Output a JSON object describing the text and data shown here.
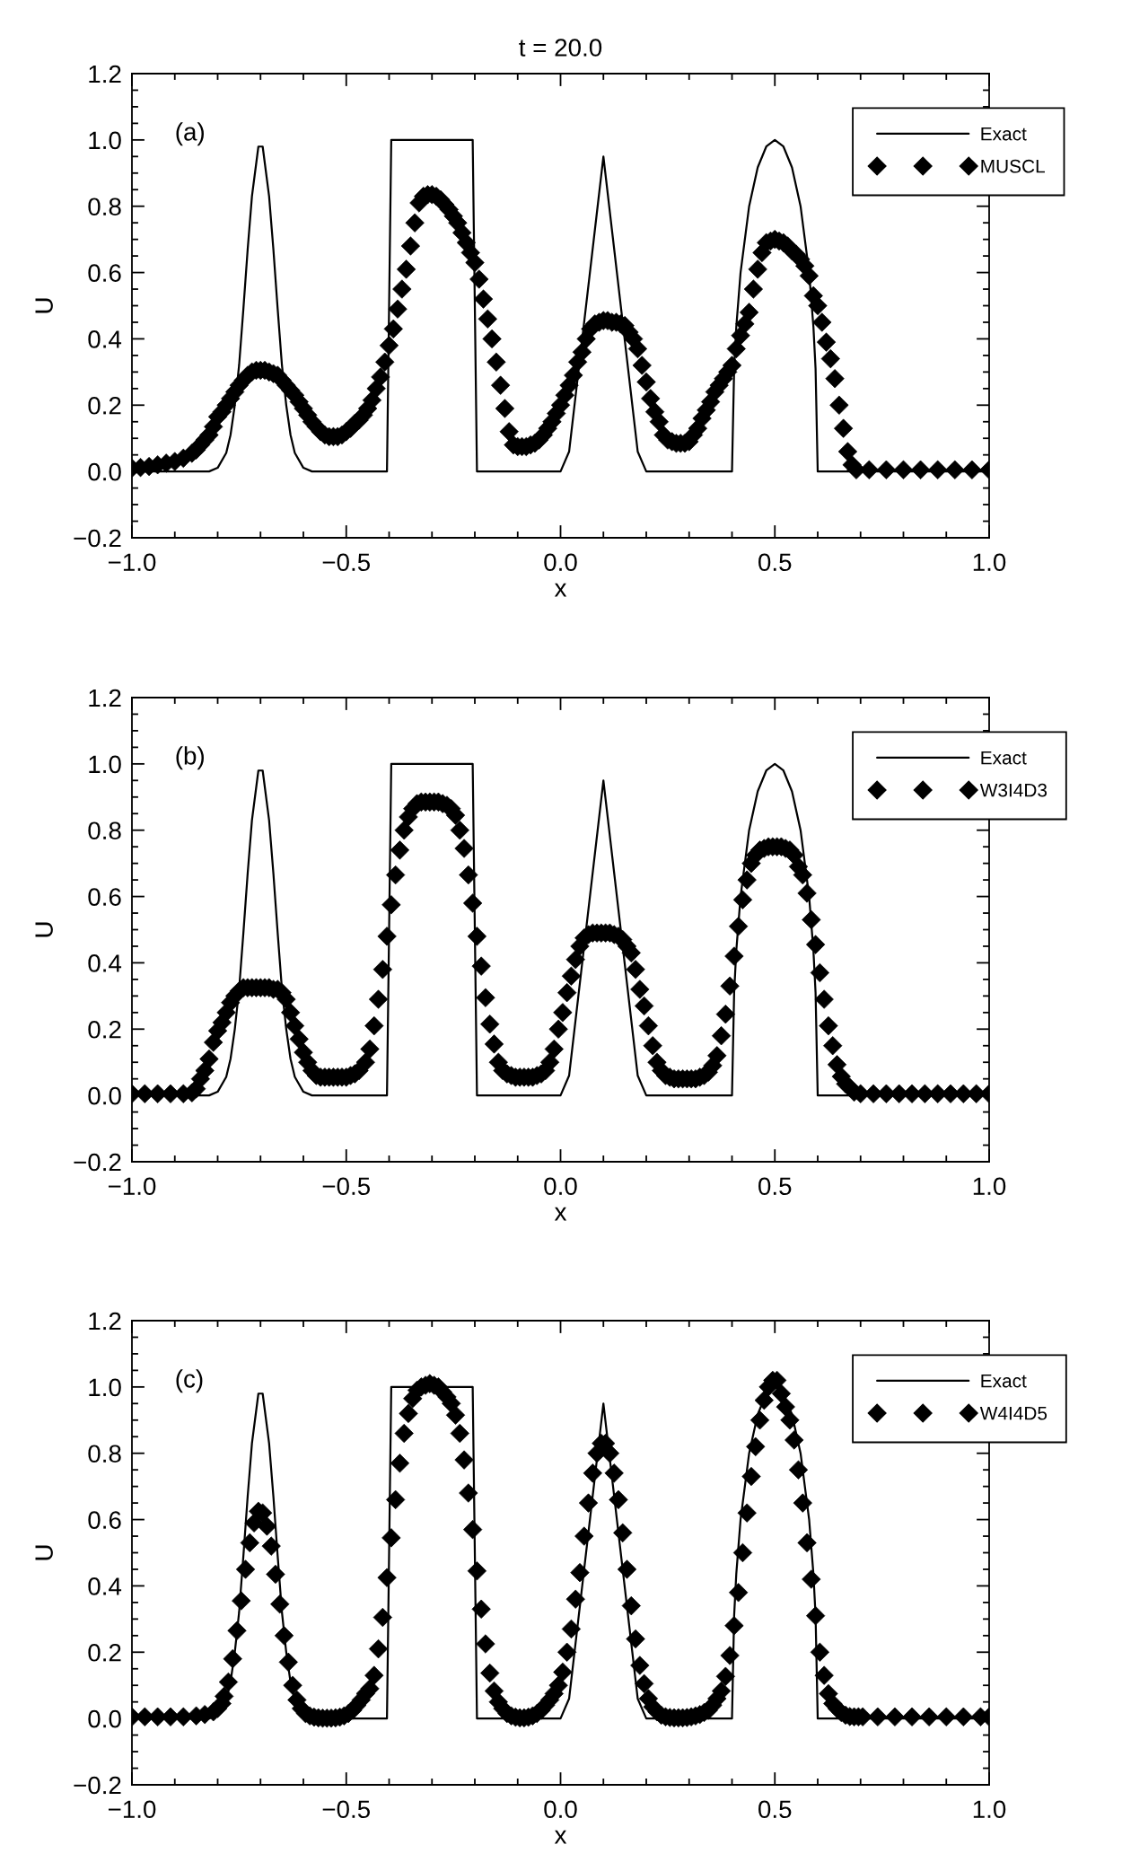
{
  "chart_data": [
    {
      "type": "scatter",
      "title": "t = 20.0",
      "xlabel": "x",
      "ylabel": "U",
      "annotations": [
        "(a)"
      ],
      "legend": "top right",
      "xlim": [
        -1.0,
        1.0
      ],
      "ylim": [
        -0.2,
        1.2
      ],
      "xticks": [
        {
          "value": -1.0,
          "label": "−1.0"
        },
        {
          "value": -0.9,
          "label": null
        },
        {
          "value": -0.8,
          "label": null
        },
        {
          "value": -0.7,
          "label": null
        },
        {
          "value": -0.6,
          "label": null
        },
        {
          "value": -0.5,
          "label": "−0.5"
        },
        {
          "value": -0.4,
          "label": null
        },
        {
          "value": -0.3,
          "label": null
        },
        {
          "value": -0.2,
          "label": null
        },
        {
          "value": -0.1,
          "label": null
        },
        {
          "value": 0.0,
          "label": "0.0"
        },
        {
          "value": 0.1,
          "label": null
        },
        {
          "value": 0.2,
          "label": null
        },
        {
          "value": 0.3,
          "label": null
        },
        {
          "value": 0.4,
          "label": null
        },
        {
          "value": 0.5,
          "label": "0.5"
        },
        {
          "value": 0.6,
          "label": null
        },
        {
          "value": 0.7,
          "label": null
        },
        {
          "value": 0.8,
          "label": null
        },
        {
          "value": 0.9,
          "label": null
        },
        {
          "value": 1.0,
          "label": "1.0"
        }
      ],
      "yticks": [
        {
          "value": -0.2,
          "label": "−0.2"
        },
        {
          "value": -0.15,
          "label": null
        },
        {
          "value": -0.1,
          "label": null
        },
        {
          "value": -0.05,
          "label": null
        },
        {
          "value": 0.0,
          "label": "0.0"
        },
        {
          "value": 0.05,
          "label": null
        },
        {
          "value": 0.1,
          "label": null
        },
        {
          "value": 0.15,
          "label": null
        },
        {
          "value": 0.2,
          "label": "0.2"
        },
        {
          "value": 0.25,
          "label": null
        },
        {
          "value": 0.3,
          "label": null
        },
        {
          "value": 0.35,
          "label": null
        },
        {
          "value": 0.4,
          "label": "0.4"
        },
        {
          "value": 0.45,
          "label": null
        },
        {
          "value": 0.5,
          "label": null
        },
        {
          "value": 0.55,
          "label": null
        },
        {
          "value": 0.6,
          "label": "0.6"
        },
        {
          "value": 0.65,
          "label": null
        },
        {
          "value": 0.7,
          "label": null
        },
        {
          "value": 0.75,
          "label": null
        },
        {
          "value": 0.8,
          "label": "0.8"
        },
        {
          "value": 0.85,
          "label": null
        },
        {
          "value": 0.9,
          "label": null
        },
        {
          "value": 0.95,
          "label": null
        },
        {
          "value": 1.0,
          "label": "1.0"
        },
        {
          "value": 1.05,
          "label": null
        },
        {
          "value": 1.1,
          "label": null
        },
        {
          "value": 1.15,
          "label": null
        },
        {
          "value": 1.2,
          "label": "1.2"
        }
      ],
      "series": [
        {
          "name": "Exact",
          "type": "line",
          "line_style": "solid",
          "marker": "none",
          "color": "#000000",
          "x": [
            -1.0,
            -0.82,
            -0.8,
            -0.78,
            -0.77,
            -0.76,
            -0.75,
            -0.74,
            -0.73,
            -0.72,
            -0.705,
            -0.695,
            -0.68,
            -0.67,
            -0.66,
            -0.65,
            -0.64,
            -0.63,
            -0.62,
            -0.6,
            -0.58,
            -0.405,
            -0.395,
            -0.205,
            -0.195,
            0.0,
            0.02,
            0.1,
            0.18,
            0.2,
            0.4,
            0.405,
            0.41,
            0.42,
            0.44,
            0.46,
            0.48,
            0.5,
            0.52,
            0.54,
            0.56,
            0.58,
            0.59,
            0.595,
            0.6,
            1.0
          ],
          "values": [
            0,
            0,
            0.011,
            0.056,
            0.11,
            0.2,
            0.32,
            0.49,
            0.67,
            0.83,
            0.98,
            0.98,
            0.83,
            0.67,
            0.49,
            0.32,
            0.2,
            0.11,
            0.056,
            0.011,
            0,
            0,
            1.0,
            1.0,
            0,
            0,
            0.06,
            0.95,
            0.06,
            0,
            0,
            0.31,
            0.436,
            0.6,
            0.8,
            0.917,
            0.98,
            1.0,
            0.98,
            0.917,
            0.8,
            0.6,
            0.436,
            0.31,
            0,
            0
          ]
        },
        {
          "name": "MUSCL",
          "marker": "diamond",
          "color": "#000000",
          "x": [
            -1.0,
            -0.98,
            -0.96,
            -0.94,
            -0.92,
            -0.9,
            -0.88,
            -0.86,
            -0.85,
            -0.84,
            -0.83,
            -0.82,
            -0.81,
            -0.8,
            -0.79,
            -0.78,
            -0.77,
            -0.76,
            -0.75,
            -0.74,
            -0.73,
            -0.72,
            -0.71,
            -0.7,
            -0.69,
            -0.68,
            -0.67,
            -0.66,
            -0.65,
            -0.64,
            -0.63,
            -0.62,
            -0.61,
            -0.6,
            -0.59,
            -0.58,
            -0.57,
            -0.56,
            -0.55,
            -0.54,
            -0.53,
            -0.52,
            -0.51,
            -0.5,
            -0.49,
            -0.48,
            -0.47,
            -0.46,
            -0.45,
            -0.44,
            -0.43,
            -0.42,
            -0.41,
            -0.4,
            -0.39,
            -0.38,
            -0.37,
            -0.36,
            -0.35,
            -0.34,
            -0.33,
            -0.32,
            -0.31,
            -0.3,
            -0.29,
            -0.28,
            -0.27,
            -0.26,
            -0.25,
            -0.24,
            -0.23,
            -0.22,
            -0.21,
            -0.2,
            -0.19,
            -0.18,
            -0.17,
            -0.16,
            -0.15,
            -0.14,
            -0.13,
            -0.12,
            -0.11,
            -0.1,
            -0.09,
            -0.08,
            -0.07,
            -0.06,
            -0.05,
            -0.04,
            -0.03,
            -0.02,
            -0.01,
            0.0,
            0.01,
            0.02,
            0.03,
            0.04,
            0.05,
            0.06,
            0.07,
            0.08,
            0.09,
            0.1,
            0.11,
            0.12,
            0.13,
            0.14,
            0.15,
            0.16,
            0.17,
            0.18,
            0.19,
            0.2,
            0.21,
            0.22,
            0.23,
            0.24,
            0.25,
            0.26,
            0.27,
            0.28,
            0.29,
            0.3,
            0.31,
            0.32,
            0.33,
            0.34,
            0.35,
            0.36,
            0.37,
            0.38,
            0.39,
            0.4,
            0.41,
            0.42,
            0.43,
            0.44,
            0.45,
            0.46,
            0.47,
            0.48,
            0.49,
            0.5,
            0.51,
            0.52,
            0.53,
            0.54,
            0.55,
            0.56,
            0.57,
            0.58,
            0.59,
            0.6,
            0.61,
            0.62,
            0.63,
            0.64,
            0.65,
            0.66,
            0.67,
            0.68,
            0.69,
            0.72,
            0.76,
            0.8,
            0.84,
            0.88,
            0.92,
            0.96,
            1.0
          ],
          "values": [
            0.01,
            0.012,
            0.015,
            0.02,
            0.025,
            0.03,
            0.04,
            0.055,
            0.065,
            0.08,
            0.095,
            0.11,
            0.135,
            0.165,
            0.18,
            0.2,
            0.22,
            0.24,
            0.26,
            0.275,
            0.29,
            0.3,
            0.305,
            0.305,
            0.305,
            0.3,
            0.295,
            0.29,
            0.275,
            0.26,
            0.245,
            0.23,
            0.21,
            0.19,
            0.17,
            0.15,
            0.135,
            0.12,
            0.11,
            0.105,
            0.105,
            0.105,
            0.11,
            0.12,
            0.13,
            0.145,
            0.155,
            0.17,
            0.19,
            0.215,
            0.25,
            0.285,
            0.33,
            0.38,
            0.43,
            0.49,
            0.55,
            0.61,
            0.68,
            0.75,
            0.81,
            0.83,
            0.835,
            0.835,
            0.83,
            0.82,
            0.805,
            0.79,
            0.77,
            0.75,
            0.72,
            0.69,
            0.66,
            0.63,
            0.58,
            0.52,
            0.46,
            0.4,
            0.33,
            0.26,
            0.19,
            0.12,
            0.08,
            0.075,
            0.075,
            0.075,
            0.08,
            0.085,
            0.095,
            0.11,
            0.13,
            0.15,
            0.175,
            0.2,
            0.23,
            0.26,
            0.29,
            0.33,
            0.36,
            0.4,
            0.43,
            0.445,
            0.45,
            0.455,
            0.455,
            0.45,
            0.45,
            0.445,
            0.44,
            0.42,
            0.4,
            0.37,
            0.32,
            0.27,
            0.22,
            0.18,
            0.15,
            0.11,
            0.095,
            0.09,
            0.085,
            0.085,
            0.085,
            0.09,
            0.11,
            0.13,
            0.16,
            0.185,
            0.21,
            0.24,
            0.26,
            0.28,
            0.3,
            0.32,
            0.37,
            0.41,
            0.445,
            0.48,
            0.55,
            0.61,
            0.66,
            0.69,
            0.695,
            0.7,
            0.695,
            0.69,
            0.68,
            0.665,
            0.655,
            0.64,
            0.62,
            0.59,
            0.53,
            0.5,
            0.45,
            0.39,
            0.34,
            0.28,
            0.2,
            0.13,
            0.06,
            0.02,
            0.005,
            0.005,
            0.005,
            0.005,
            0.005,
            0.005,
            0.005,
            0.005,
            0.005
          ]
        }
      ]
    },
    {
      "type": "scatter",
      "xlabel": "x",
      "ylabel": "U",
      "annotations": [
        "(b)"
      ],
      "legend": "top right",
      "xlim": [
        -1.0,
        1.0
      ],
      "ylim": [
        -0.2,
        1.2
      ],
      "xticks": [
        {
          "value": -1.0,
          "label": "−1.0"
        },
        {
          "value": -0.9,
          "label": null
        },
        {
          "value": -0.8,
          "label": null
        },
        {
          "value": -0.7,
          "label": null
        },
        {
          "value": -0.6,
          "label": null
        },
        {
          "value": -0.5,
          "label": "−0.5"
        },
        {
          "value": -0.4,
          "label": null
        },
        {
          "value": -0.3,
          "label": null
        },
        {
          "value": -0.2,
          "label": null
        },
        {
          "value": -0.1,
          "label": null
        },
        {
          "value": 0.0,
          "label": "0.0"
        },
        {
          "value": 0.1,
          "label": null
        },
        {
          "value": 0.2,
          "label": null
        },
        {
          "value": 0.3,
          "label": null
        },
        {
          "value": 0.4,
          "label": null
        },
        {
          "value": 0.5,
          "label": "0.5"
        },
        {
          "value": 0.6,
          "label": null
        },
        {
          "value": 0.7,
          "label": null
        },
        {
          "value": 0.8,
          "label": null
        },
        {
          "value": 0.9,
          "label": null
        },
        {
          "value": 1.0,
          "label": "1.0"
        }
      ],
      "yticks": [
        {
          "value": -0.2,
          "label": "−0.2"
        },
        {
          "value": -0.15,
          "label": null
        },
        {
          "value": -0.1,
          "label": null
        },
        {
          "value": -0.05,
          "label": null
        },
        {
          "value": 0.0,
          "label": "0.0"
        },
        {
          "value": 0.05,
          "label": null
        },
        {
          "value": 0.1,
          "label": null
        },
        {
          "value": 0.15,
          "label": null
        },
        {
          "value": 0.2,
          "label": "0.2"
        },
        {
          "value": 0.25,
          "label": null
        },
        {
          "value": 0.3,
          "label": null
        },
        {
          "value": 0.35,
          "label": null
        },
        {
          "value": 0.4,
          "label": "0.4"
        },
        {
          "value": 0.45,
          "label": null
        },
        {
          "value": 0.5,
          "label": null
        },
        {
          "value": 0.55,
          "label": null
        },
        {
          "value": 0.6,
          "label": "0.6"
        },
        {
          "value": 0.65,
          "label": null
        },
        {
          "value": 0.7,
          "label": null
        },
        {
          "value": 0.75,
          "label": null
        },
        {
          "value": 0.8,
          "label": "0.8"
        },
        {
          "value": 0.85,
          "label": null
        },
        {
          "value": 0.9,
          "label": null
        },
        {
          "value": 0.95,
          "label": null
        },
        {
          "value": 1.0,
          "label": "1.0"
        },
        {
          "value": 1.05,
          "label": null
        },
        {
          "value": 1.1,
          "label": null
        },
        {
          "value": 1.15,
          "label": null
        },
        {
          "value": 1.2,
          "label": "1.2"
        }
      ],
      "series": [
        {
          "name": "Exact",
          "type": "line",
          "line_style": "solid",
          "marker": "none",
          "color": "#000000",
          "x": [
            -1.0,
            -0.82,
            -0.8,
            -0.78,
            -0.77,
            -0.76,
            -0.75,
            -0.74,
            -0.73,
            -0.72,
            -0.705,
            -0.695,
            -0.68,
            -0.67,
            -0.66,
            -0.65,
            -0.64,
            -0.63,
            -0.62,
            -0.6,
            -0.58,
            -0.405,
            -0.395,
            -0.205,
            -0.195,
            0.0,
            0.02,
            0.1,
            0.18,
            0.2,
            0.4,
            0.405,
            0.41,
            0.42,
            0.44,
            0.46,
            0.48,
            0.5,
            0.52,
            0.54,
            0.56,
            0.58,
            0.59,
            0.595,
            0.6,
            1.0
          ],
          "values": [
            0,
            0,
            0.011,
            0.056,
            0.11,
            0.2,
            0.32,
            0.49,
            0.67,
            0.83,
            0.98,
            0.98,
            0.83,
            0.67,
            0.49,
            0.32,
            0.2,
            0.11,
            0.056,
            0.011,
            0,
            0,
            1.0,
            1.0,
            0,
            0,
            0.06,
            0.95,
            0.06,
            0,
            0,
            0.31,
            0.436,
            0.6,
            0.8,
            0.917,
            0.98,
            1.0,
            0.98,
            0.917,
            0.8,
            0.6,
            0.436,
            0.31,
            0,
            0
          ]
        },
        {
          "name": "W3I4D3",
          "marker": "diamond",
          "color": "#000000",
          "x": [
            -1.0,
            -0.97,
            -0.94,
            -0.91,
            -0.88,
            -0.86,
            -0.85,
            -0.84,
            -0.83,
            -0.82,
            -0.81,
            -0.8,
            -0.79,
            -0.78,
            -0.77,
            -0.76,
            -0.75,
            -0.74,
            -0.73,
            -0.72,
            -0.71,
            -0.7,
            -0.69,
            -0.68,
            -0.67,
            -0.66,
            -0.65,
            -0.64,
            -0.63,
            -0.62,
            -0.61,
            -0.6,
            -0.59,
            -0.58,
            -0.57,
            -0.56,
            -0.55,
            -0.54,
            -0.53,
            -0.52,
            -0.51,
            -0.5,
            -0.49,
            -0.48,
            -0.47,
            -0.455,
            -0.445,
            -0.435,
            -0.425,
            -0.415,
            -0.405,
            -0.395,
            -0.385,
            -0.375,
            -0.365,
            -0.355,
            -0.345,
            -0.335,
            -0.325,
            -0.315,
            -0.305,
            -0.295,
            -0.285,
            -0.275,
            -0.265,
            -0.255,
            -0.245,
            -0.235,
            -0.225,
            -0.215,
            -0.205,
            -0.195,
            -0.185,
            -0.175,
            -0.165,
            -0.155,
            -0.145,
            -0.135,
            -0.125,
            -0.115,
            -0.105,
            -0.095,
            -0.085,
            -0.075,
            -0.065,
            -0.055,
            -0.045,
            -0.035,
            -0.025,
            -0.015,
            -0.005,
            0.005,
            0.015,
            0.025,
            0.035,
            0.045,
            0.055,
            0.065,
            0.075,
            0.085,
            0.095,
            0.105,
            0.115,
            0.125,
            0.135,
            0.145,
            0.155,
            0.165,
            0.175,
            0.185,
            0.195,
            0.205,
            0.215,
            0.225,
            0.235,
            0.245,
            0.255,
            0.265,
            0.275,
            0.285,
            0.295,
            0.305,
            0.315,
            0.325,
            0.335,
            0.345,
            0.355,
            0.365,
            0.375,
            0.385,
            0.395,
            0.405,
            0.415,
            0.425,
            0.435,
            0.445,
            0.455,
            0.465,
            0.475,
            0.485,
            0.495,
            0.505,
            0.515,
            0.525,
            0.535,
            0.545,
            0.555,
            0.565,
            0.575,
            0.585,
            0.595,
            0.605,
            0.615,
            0.625,
            0.635,
            0.645,
            0.655,
            0.665,
            0.675,
            0.685,
            0.7,
            0.73,
            0.76,
            0.79,
            0.82,
            0.85,
            0.88,
            0.91,
            0.94,
            0.97,
            1.0
          ],
          "values": [
            0.005,
            0.005,
            0.005,
            0.005,
            0.005,
            0.008,
            0.02,
            0.05,
            0.075,
            0.11,
            0.16,
            0.195,
            0.22,
            0.25,
            0.28,
            0.3,
            0.315,
            0.325,
            0.325,
            0.325,
            0.325,
            0.325,
            0.325,
            0.325,
            0.32,
            0.32,
            0.31,
            0.29,
            0.25,
            0.21,
            0.17,
            0.13,
            0.1,
            0.075,
            0.06,
            0.055,
            0.055,
            0.055,
            0.055,
            0.055,
            0.055,
            0.055,
            0.06,
            0.065,
            0.075,
            0.1,
            0.14,
            0.21,
            0.29,
            0.38,
            0.48,
            0.575,
            0.665,
            0.74,
            0.8,
            0.84,
            0.865,
            0.88,
            0.885,
            0.885,
            0.885,
            0.885,
            0.885,
            0.88,
            0.875,
            0.865,
            0.845,
            0.8,
            0.745,
            0.665,
            0.58,
            0.48,
            0.39,
            0.295,
            0.215,
            0.155,
            0.1,
            0.075,
            0.065,
            0.06,
            0.055,
            0.055,
            0.055,
            0.055,
            0.055,
            0.06,
            0.065,
            0.075,
            0.1,
            0.14,
            0.2,
            0.25,
            0.31,
            0.36,
            0.41,
            0.45,
            0.475,
            0.485,
            0.49,
            0.49,
            0.49,
            0.49,
            0.49,
            0.485,
            0.48,
            0.47,
            0.45,
            0.43,
            0.38,
            0.32,
            0.27,
            0.21,
            0.15,
            0.1,
            0.075,
            0.06,
            0.055,
            0.05,
            0.05,
            0.05,
            0.05,
            0.05,
            0.05,
            0.055,
            0.06,
            0.07,
            0.09,
            0.12,
            0.18,
            0.245,
            0.33,
            0.42,
            0.51,
            0.59,
            0.65,
            0.7,
            0.725,
            0.74,
            0.745,
            0.75,
            0.75,
            0.75,
            0.75,
            0.745,
            0.74,
            0.725,
            0.69,
            0.665,
            0.61,
            0.53,
            0.455,
            0.37,
            0.29,
            0.21,
            0.15,
            0.093,
            0.057,
            0.035,
            0.024,
            0.01,
            0.005,
            0.005,
            0.005,
            0.005,
            0.005,
            0.005,
            0.005,
            0.005,
            0.005,
            0.005,
            0.005
          ]
        }
      ]
    },
    {
      "type": "scatter",
      "xlabel": "x",
      "ylabel": "U",
      "annotations": [
        "(c)"
      ],
      "legend": "top right",
      "xlim": [
        -1.0,
        1.0
      ],
      "ylim": [
        -0.2,
        1.2
      ],
      "xticks": [
        {
          "value": -1.0,
          "label": "−1.0"
        },
        {
          "value": -0.9,
          "label": null
        },
        {
          "value": -0.8,
          "label": null
        },
        {
          "value": -0.7,
          "label": null
        },
        {
          "value": -0.6,
          "label": null
        },
        {
          "value": -0.5,
          "label": "−0.5"
        },
        {
          "value": -0.4,
          "label": null
        },
        {
          "value": -0.3,
          "label": null
        },
        {
          "value": -0.2,
          "label": null
        },
        {
          "value": -0.1,
          "label": null
        },
        {
          "value": 0.0,
          "label": "0.0"
        },
        {
          "value": 0.1,
          "label": null
        },
        {
          "value": 0.2,
          "label": null
        },
        {
          "value": 0.3,
          "label": null
        },
        {
          "value": 0.4,
          "label": null
        },
        {
          "value": 0.5,
          "label": "0.5"
        },
        {
          "value": 0.6,
          "label": null
        },
        {
          "value": 0.7,
          "label": null
        },
        {
          "value": 0.8,
          "label": null
        },
        {
          "value": 0.9,
          "label": null
        },
        {
          "value": 1.0,
          "label": "1.0"
        }
      ],
      "yticks": [
        {
          "value": -0.2,
          "label": "−0.2"
        },
        {
          "value": -0.15,
          "label": null
        },
        {
          "value": -0.1,
          "label": null
        },
        {
          "value": -0.05,
          "label": null
        },
        {
          "value": 0.0,
          "label": "0.0"
        },
        {
          "value": 0.05,
          "label": null
        },
        {
          "value": 0.1,
          "label": null
        },
        {
          "value": 0.15,
          "label": null
        },
        {
          "value": 0.2,
          "label": "0.2"
        },
        {
          "value": 0.25,
          "label": null
        },
        {
          "value": 0.3,
          "label": null
        },
        {
          "value": 0.35,
          "label": null
        },
        {
          "value": 0.4,
          "label": "0.4"
        },
        {
          "value": 0.45,
          "label": null
        },
        {
          "value": 0.5,
          "label": null
        },
        {
          "value": 0.55,
          "label": null
        },
        {
          "value": 0.6,
          "label": "0.6"
        },
        {
          "value": 0.65,
          "label": null
        },
        {
          "value": 0.7,
          "label": null
        },
        {
          "value": 0.75,
          "label": null
        },
        {
          "value": 0.8,
          "label": "0.8"
        },
        {
          "value": 0.85,
          "label": null
        },
        {
          "value": 0.9,
          "label": null
        },
        {
          "value": 0.95,
          "label": null
        },
        {
          "value": 1.0,
          "label": "1.0"
        },
        {
          "value": 1.05,
          "label": null
        },
        {
          "value": 1.1,
          "label": null
        },
        {
          "value": 1.15,
          "label": null
        },
        {
          "value": 1.2,
          "label": "1.2"
        }
      ],
      "series": [
        {
          "name": "Exact",
          "type": "line",
          "line_style": "solid",
          "marker": "none",
          "color": "#000000",
          "x": [
            -1.0,
            -0.82,
            -0.8,
            -0.78,
            -0.77,
            -0.76,
            -0.75,
            -0.74,
            -0.73,
            -0.72,
            -0.705,
            -0.695,
            -0.68,
            -0.67,
            -0.66,
            -0.65,
            -0.64,
            -0.63,
            -0.62,
            -0.6,
            -0.58,
            -0.405,
            -0.395,
            -0.205,
            -0.195,
            0.0,
            0.02,
            0.1,
            0.18,
            0.2,
            0.4,
            0.405,
            0.41,
            0.42,
            0.44,
            0.46,
            0.48,
            0.5,
            0.52,
            0.54,
            0.56,
            0.58,
            0.59,
            0.595,
            0.6,
            1.0
          ],
          "values": [
            0,
            0,
            0.011,
            0.056,
            0.11,
            0.2,
            0.32,
            0.49,
            0.67,
            0.83,
            0.98,
            0.98,
            0.83,
            0.67,
            0.49,
            0.32,
            0.2,
            0.11,
            0.056,
            0.011,
            0,
            0,
            1.0,
            1.0,
            0,
            0,
            0.06,
            0.95,
            0.06,
            0,
            0,
            0.31,
            0.436,
            0.6,
            0.8,
            0.917,
            0.98,
            1.0,
            0.98,
            0.917,
            0.8,
            0.6,
            0.436,
            0.31,
            0,
            0
          ]
        },
        {
          "name": "W4I4D5",
          "marker": "diamond",
          "color": "#000000",
          "x": [
            -1.0,
            -0.97,
            -0.94,
            -0.91,
            -0.88,
            -0.85,
            -0.83,
            -0.81,
            -0.8,
            -0.79,
            -0.785,
            -0.775,
            -0.765,
            -0.755,
            -0.745,
            -0.735,
            -0.725,
            -0.715,
            -0.705,
            -0.695,
            -0.685,
            -0.675,
            -0.665,
            -0.655,
            -0.645,
            -0.635,
            -0.625,
            -0.615,
            -0.605,
            -0.595,
            -0.585,
            -0.575,
            -0.565,
            -0.555,
            -0.545,
            -0.535,
            -0.525,
            -0.515,
            -0.505,
            -0.495,
            -0.485,
            -0.475,
            -0.465,
            -0.455,
            -0.445,
            -0.435,
            -0.425,
            -0.415,
            -0.405,
            -0.395,
            -0.385,
            -0.375,
            -0.365,
            -0.355,
            -0.345,
            -0.335,
            -0.325,
            -0.315,
            -0.305,
            -0.295,
            -0.285,
            -0.275,
            -0.265,
            -0.255,
            -0.245,
            -0.235,
            -0.225,
            -0.215,
            -0.205,
            -0.195,
            -0.185,
            -0.175,
            -0.165,
            -0.155,
            -0.145,
            -0.135,
            -0.125,
            -0.115,
            -0.105,
            -0.095,
            -0.085,
            -0.075,
            -0.065,
            -0.055,
            -0.045,
            -0.035,
            -0.025,
            -0.015,
            -0.005,
            0.005,
            0.015,
            0.025,
            0.035,
            0.045,
            0.055,
            0.065,
            0.075,
            0.085,
            0.095,
            0.105,
            0.115,
            0.125,
            0.135,
            0.145,
            0.155,
            0.165,
            0.175,
            0.185,
            0.195,
            0.205,
            0.215,
            0.225,
            0.235,
            0.245,
            0.255,
            0.265,
            0.275,
            0.285,
            0.295,
            0.305,
            0.315,
            0.325,
            0.335,
            0.345,
            0.355,
            0.365,
            0.375,
            0.385,
            0.395,
            0.405,
            0.415,
            0.425,
            0.435,
            0.445,
            0.455,
            0.465,
            0.475,
            0.485,
            0.495,
            0.505,
            0.515,
            0.525,
            0.535,
            0.545,
            0.555,
            0.565,
            0.575,
            0.585,
            0.595,
            0.605,
            0.615,
            0.625,
            0.635,
            0.645,
            0.655,
            0.665,
            0.675,
            0.685,
            0.695,
            0.705,
            0.74,
            0.78,
            0.82,
            0.86,
            0.9,
            0.94,
            0.98,
            1.0
          ],
          "values": [
            0.005,
            0.005,
            0.005,
            0.005,
            0.005,
            0.008,
            0.012,
            0.02,
            0.03,
            0.045,
            0.067,
            0.11,
            0.18,
            0.265,
            0.355,
            0.45,
            0.53,
            0.59,
            0.625,
            0.62,
            0.58,
            0.52,
            0.435,
            0.345,
            0.25,
            0.17,
            0.1,
            0.056,
            0.03,
            0.015,
            0.008,
            0.004,
            0.002,
            0.001,
            0.001,
            0.001,
            0.002,
            0.004,
            0.008,
            0.015,
            0.025,
            0.04,
            0.056,
            0.075,
            0.09,
            0.13,
            0.21,
            0.305,
            0.425,
            0.545,
            0.66,
            0.77,
            0.86,
            0.92,
            0.965,
            0.99,
            1.0,
            1.005,
            1.01,
            1.005,
            1.0,
            0.985,
            0.97,
            0.95,
            0.915,
            0.86,
            0.78,
            0.68,
            0.57,
            0.445,
            0.33,
            0.225,
            0.137,
            0.083,
            0.05,
            0.03,
            0.015,
            0.008,
            0.004,
            0.002,
            0.002,
            0.004,
            0.008,
            0.015,
            0.025,
            0.04,
            0.056,
            0.075,
            0.1,
            0.14,
            0.2,
            0.27,
            0.36,
            0.44,
            0.55,
            0.65,
            0.74,
            0.8,
            0.83,
            0.83,
            0.8,
            0.74,
            0.66,
            0.56,
            0.45,
            0.34,
            0.24,
            0.16,
            0.105,
            0.06,
            0.035,
            0.02,
            0.01,
            0.005,
            0.003,
            0.002,
            0.002,
            0.002,
            0.003,
            0.005,
            0.008,
            0.012,
            0.018,
            0.025,
            0.04,
            0.06,
            0.083,
            0.127,
            0.19,
            0.28,
            0.38,
            0.5,
            0.62,
            0.73,
            0.82,
            0.9,
            0.96,
            1.0,
            1.02,
            1.02,
            0.98,
            0.94,
            0.9,
            0.84,
            0.75,
            0.65,
            0.53,
            0.42,
            0.31,
            0.2,
            0.13,
            0.075,
            0.045,
            0.03,
            0.018,
            0.01,
            0.006,
            0.005,
            0.005,
            0.005,
            0.005,
            0.005,
            0.005,
            0.005,
            0.005,
            0.005,
            0.005,
            0.005
          ]
        }
      ]
    }
  ]
}
